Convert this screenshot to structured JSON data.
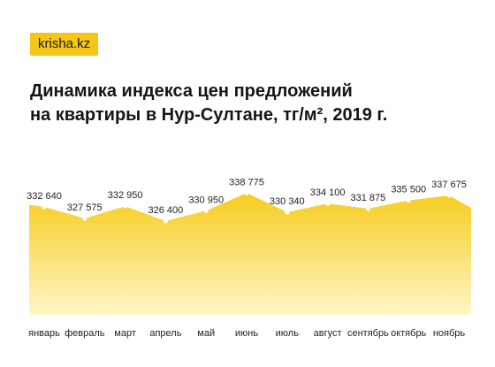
{
  "brand": {
    "label": "krisha.kz"
  },
  "header": {
    "title_line1": "Динамика индекса цен предложений",
    "title_line2": "на квартиры в Нур-Султане, тг/м², 2019 г."
  },
  "colors": {
    "accent": "#f5c518",
    "fill_top": "#f7cc1e",
    "fill_bottom": "#fff6c6",
    "marker": "#ffffff",
    "text": "#222222"
  },
  "chart_data": {
    "type": "area",
    "title": "",
    "categories": [
      "январь",
      "февраль",
      "март",
      "апрель",
      "май",
      "июнь",
      "июль",
      "август",
      "сентябрь",
      "октябрь",
      "ноябрь"
    ],
    "series": [
      {
        "values": [
          332640,
          327575,
          332950,
          326400,
          330950,
          338775,
          330340,
          334100,
          331875,
          335500,
          337675
        ],
        "labels": [
          "332 640",
          "327 575",
          "332 950",
          "326 400",
          "330 950",
          "338 775",
          "330 340",
          "334 100",
          "331 875",
          "335 500",
          "337 675"
        ]
      }
    ],
    "ylim": [
      285000,
      342000
    ],
    "grid": false,
    "legend": "none"
  }
}
